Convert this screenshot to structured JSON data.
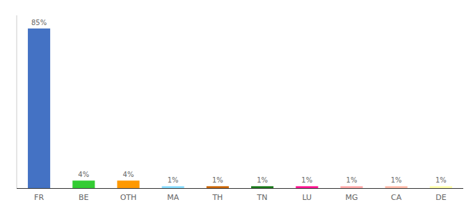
{
  "chart_data": {
    "type": "bar",
    "categories": [
      "FR",
      "BE",
      "OTH",
      "MA",
      "TH",
      "TN",
      "LU",
      "MG",
      "CA",
      "DE"
    ],
    "values": [
      85,
      4,
      4,
      1,
      1,
      1,
      1,
      1,
      1,
      1
    ],
    "value_labels": [
      "85%",
      "4%",
      "4%",
      "1%",
      "1%",
      "1%",
      "1%",
      "1%",
      "1%",
      "1%"
    ],
    "colors": [
      "#4472c4",
      "#33cc33",
      "#ff9900",
      "#88ddff",
      "#cc6600",
      "#1a7a1a",
      "#ff1493",
      "#ffaaaa",
      "#ffbbaa",
      "#ffffaa"
    ],
    "ylim": [
      0,
      92
    ],
    "data_labels": true,
    "tick_labels": "x"
  }
}
